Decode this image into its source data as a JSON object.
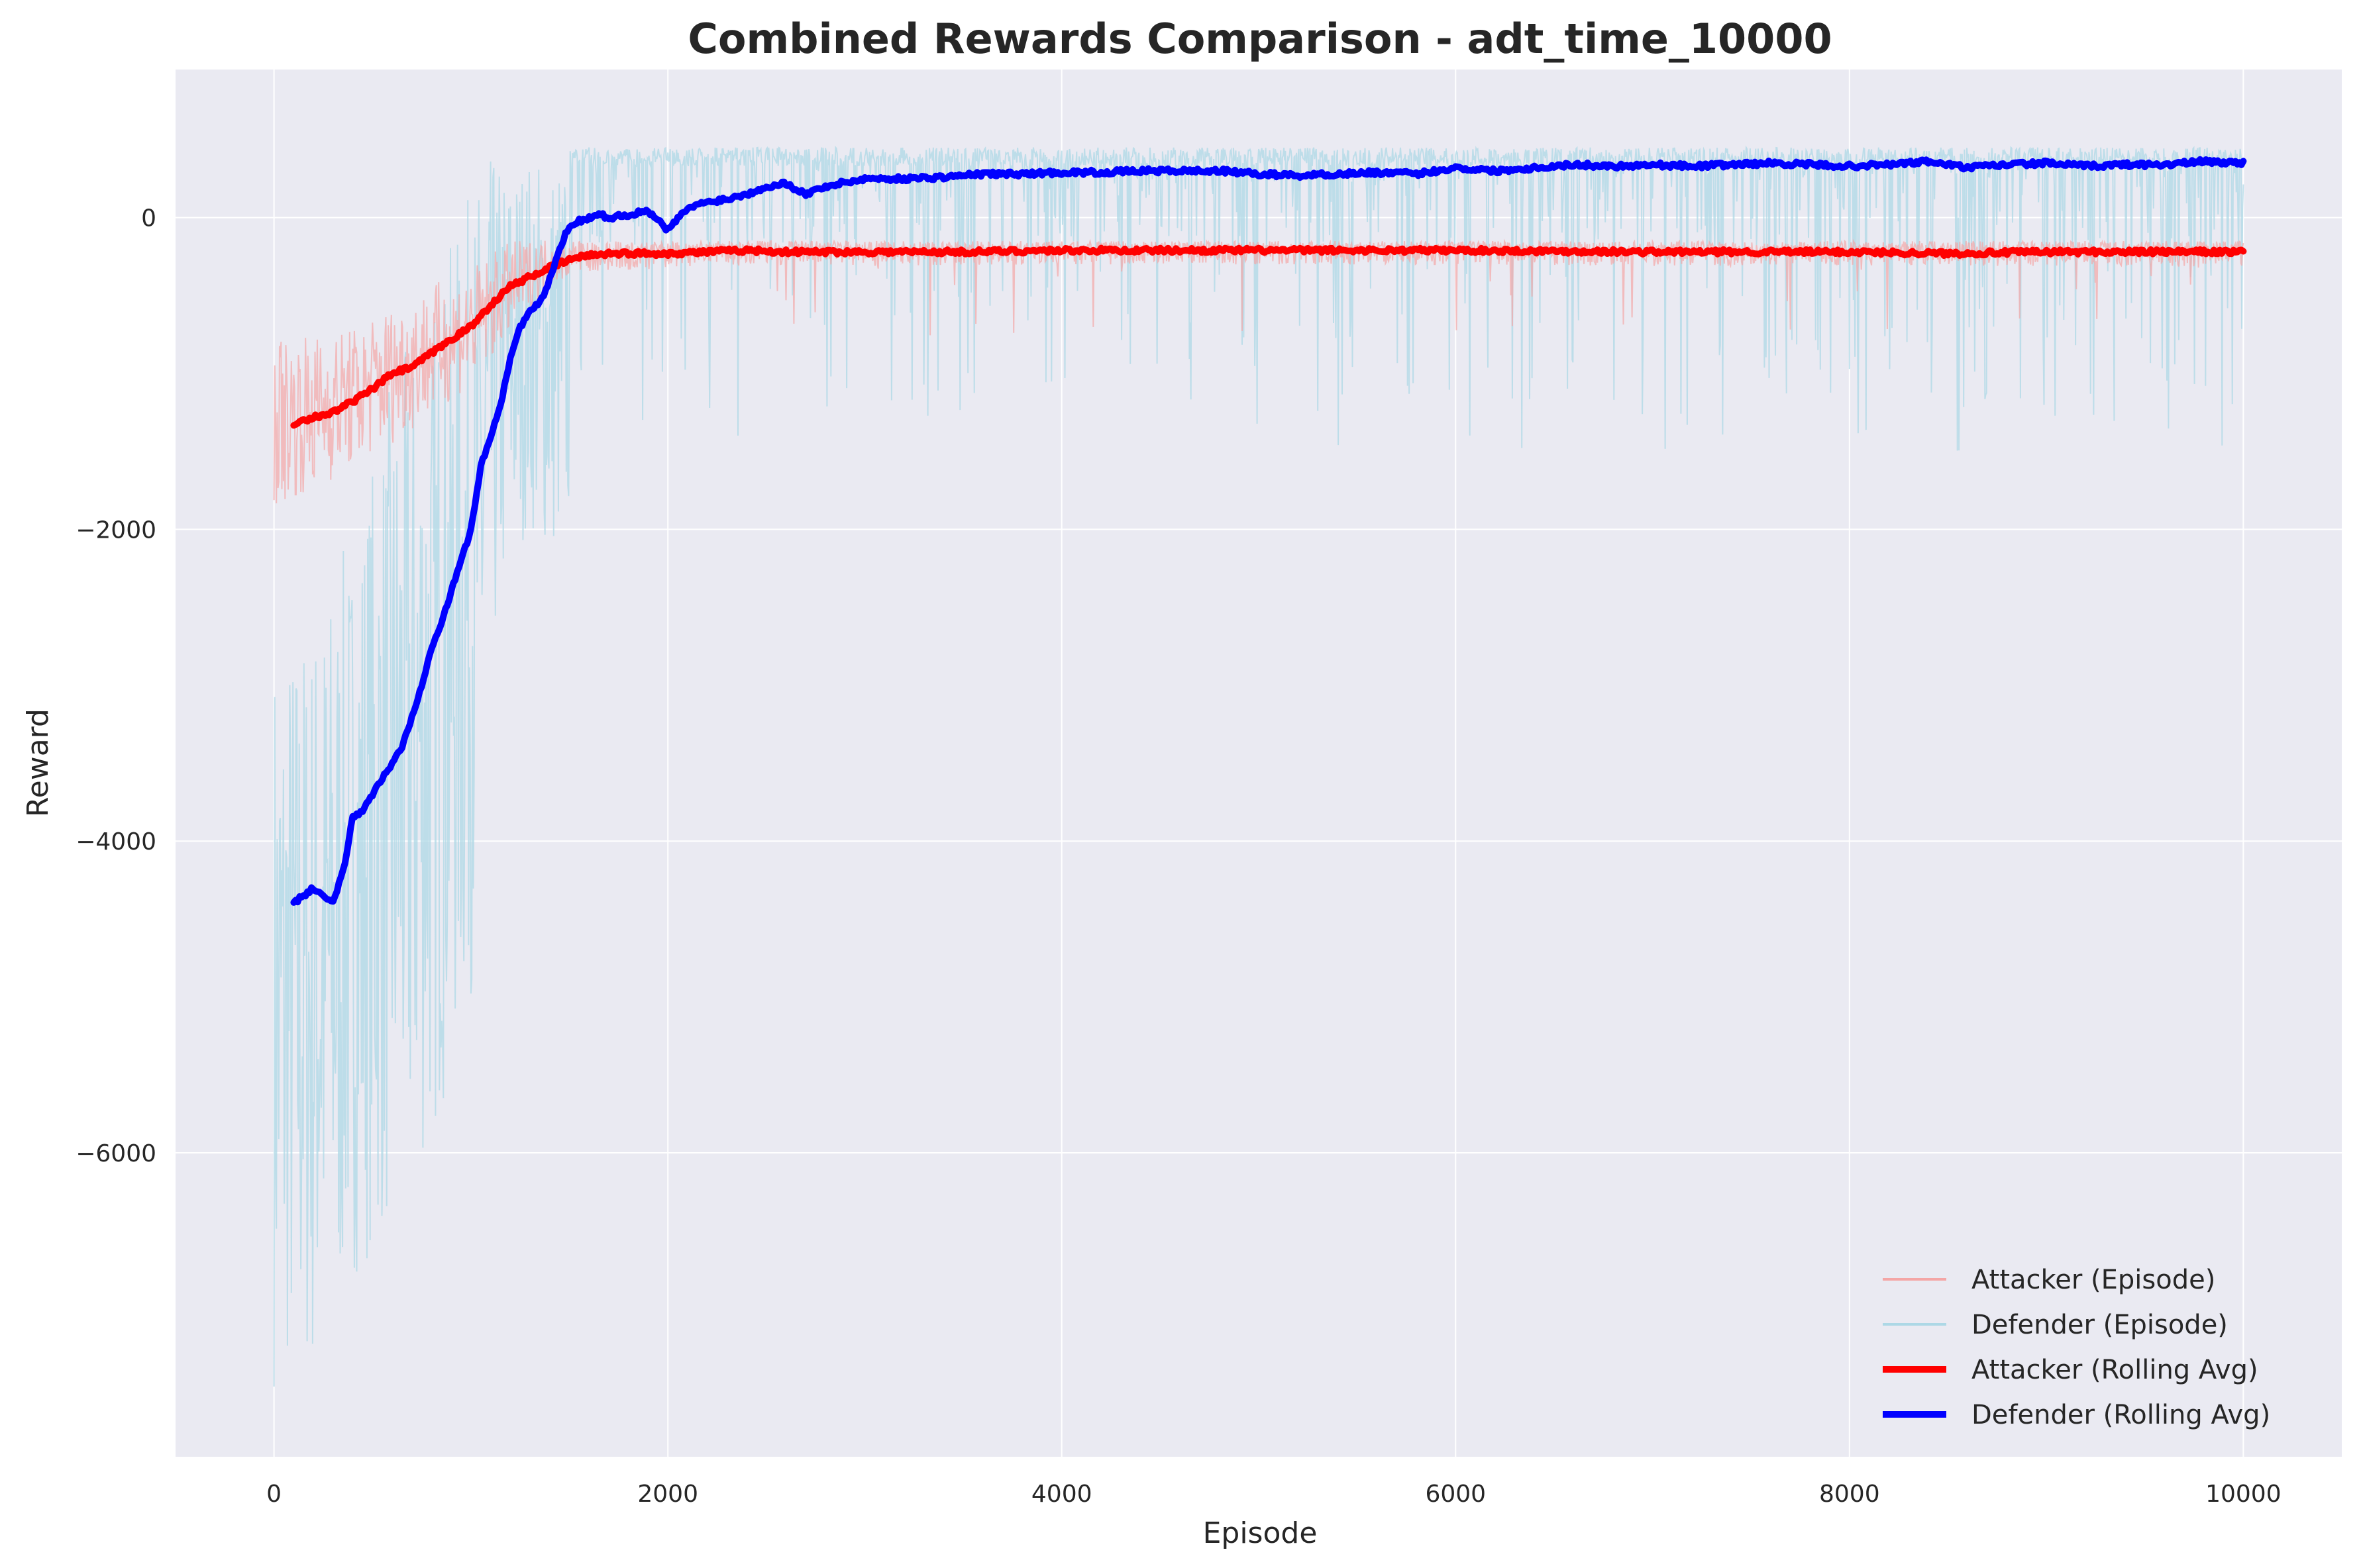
{
  "chart_data": {
    "type": "line",
    "title": "Combined Rewards Comparison - adt_time_10000",
    "xlabel": "Episode",
    "ylabel": "Reward",
    "xlim": [
      -500,
      10500
    ],
    "ylim": [
      -7950,
      950
    ],
    "xticks": [
      0,
      2000,
      4000,
      6000,
      8000,
      10000
    ],
    "yticks": [
      -6000,
      -4000,
      -2000,
      0
    ],
    "xtick_labels": [
      "0",
      "2000",
      "4000",
      "6000",
      "8000",
      "10000"
    ],
    "ytick_labels": [
      "−6000",
      "−4000",
      "−2000",
      "0"
    ],
    "grid": true,
    "legend_position": "lower-right",
    "series": [
      {
        "name": "Attacker (Episode)",
        "color": "#f4a6a6",
        "style": "thin-episode",
        "x": [
          0,
          200,
          400,
          600,
          800,
          1000,
          1200,
          1400,
          1600,
          1800,
          2000,
          2500,
          3000,
          4000,
          5000,
          6000,
          7000,
          8000,
          9000,
          10000
        ],
        "center": [
          -1300,
          -1250,
          -1150,
          -1000,
          -850,
          -700,
          -450,
          -280,
          -230,
          -230,
          -220,
          -200,
          -210,
          -200,
          -200,
          -200,
          -210,
          -210,
          -210,
          -220
        ],
        "spread": [
          550,
          500,
          450,
          450,
          420,
          380,
          300,
          150,
          120,
          110,
          110,
          100,
          100,
          100,
          100,
          100,
          100,
          100,
          100,
          100
        ]
      },
      {
        "name": "Defender (Episode)",
        "color": "#add8e6",
        "style": "thin-episode",
        "x": [
          0,
          200,
          400,
          600,
          800,
          1000,
          1100,
          1200,
          1300,
          1400,
          1600,
          1800,
          2000,
          2500,
          3000,
          4000,
          5000,
          6000,
          7000,
          8000,
          9000,
          10000
        ],
        "low": [
          -7500,
          -7500,
          -6800,
          -6500,
          -6000,
          -5000,
          -3000,
          -2200,
          -2000,
          -2200,
          -2000,
          -1800,
          -1500,
          -1500,
          -1200,
          -1500,
          -1500,
          -1500,
          -1500,
          -1500,
          -1500,
          -1500
        ],
        "high": [
          -2700,
          -2500,
          -2000,
          -1000,
          -500,
          200,
          400,
          400,
          420,
          420,
          450,
          450,
          450,
          450,
          450,
          450,
          450,
          450,
          450,
          450,
          450,
          450
        ]
      },
      {
        "name": "Attacker (Rolling Avg)",
        "color": "#ff0000",
        "style": "rolling",
        "x": [
          100,
          200,
          300,
          400,
          500,
          600,
          700,
          800,
          900,
          1000,
          1100,
          1200,
          1300,
          1400,
          1500,
          1600,
          1700,
          1800,
          2000,
          2200,
          2400,
          2600,
          2800,
          3000,
          3500,
          4000,
          4500,
          5000,
          5500,
          6000,
          6500,
          7000,
          7500,
          8000,
          8500,
          9000,
          9500,
          10000
        ],
        "values": [
          -1320,
          -1280,
          -1250,
          -1180,
          -1100,
          -1000,
          -960,
          -870,
          -780,
          -700,
          -560,
          -440,
          -380,
          -320,
          -270,
          -240,
          -230,
          -230,
          -230,
          -220,
          -210,
          -220,
          -220,
          -220,
          -220,
          -210,
          -210,
          -210,
          -210,
          -210,
          -215,
          -220,
          -220,
          -220,
          -230,
          -220,
          -220,
          -220
        ]
      },
      {
        "name": "Defender (Rolling Avg)",
        "color": "#0000ff",
        "style": "rolling",
        "x": [
          100,
          150,
          200,
          250,
          300,
          350,
          400,
          450,
          500,
          550,
          600,
          650,
          700,
          750,
          800,
          850,
          900,
          950,
          1000,
          1050,
          1100,
          1150,
          1200,
          1250,
          1300,
          1350,
          1400,
          1450,
          1500,
          1550,
          1600,
          1650,
          1700,
          1800,
          1900,
          2000,
          2100,
          2200,
          2300,
          2400,
          2500,
          2600,
          2700,
          2800,
          3000,
          3200,
          3400,
          3600,
          3800,
          4000,
          4200,
          4400,
          4600,
          4800,
          5000,
          5200,
          5400,
          5600,
          5800,
          6000,
          6200,
          6400,
          6600,
          6800,
          7000,
          7200,
          7400,
          7600,
          7800,
          8000,
          8200,
          8400,
          8600,
          8800,
          9000,
          9200,
          9400,
          9600,
          9800,
          10000
        ],
        "values": [
          -4400,
          -4350,
          -4300,
          -4350,
          -4400,
          -4200,
          -3850,
          -3800,
          -3700,
          -3600,
          -3500,
          -3400,
          -3200,
          -3000,
          -2750,
          -2600,
          -2400,
          -2200,
          -2000,
          -1600,
          -1400,
          -1200,
          -900,
          -700,
          -600,
          -550,
          -400,
          -200,
          -50,
          -20,
          0,
          20,
          0,
          20,
          40,
          -80,
          60,
          100,
          120,
          150,
          200,
          220,
          150,
          200,
          250,
          250,
          260,
          280,
          280,
          290,
          290,
          300,
          300,
          300,
          280,
          270,
          280,
          290,
          280,
          320,
          300,
          320,
          340,
          330,
          340,
          330,
          340,
          350,
          340,
          330,
          340,
          360,
          320,
          340,
          350,
          330,
          340,
          340,
          360,
          350
        ]
      }
    ]
  }
}
